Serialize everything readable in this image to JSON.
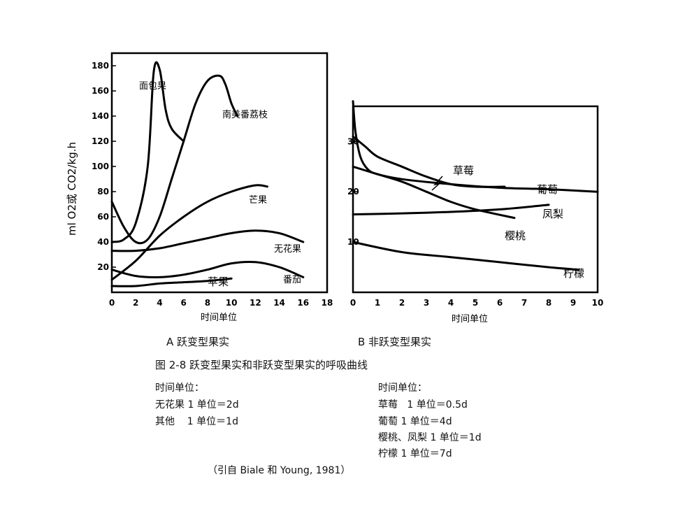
{
  "chart_data": [
    {
      "type": "line",
      "panel_label": "A 跃变型果实",
      "ylabel": "ml O2或 CO2/kg.h",
      "xlabel": "时间单位",
      "xlim": [
        0,
        18
      ],
      "ylim": [
        0,
        190
      ],
      "x_ticks": [
        "0",
        "2",
        "4",
        "6",
        "8",
        "10",
        "12",
        "14",
        "16",
        "18"
      ],
      "y_ticks": [
        "20",
        "40",
        "60",
        "80",
        "100",
        "120",
        "140",
        "160",
        "180"
      ],
      "grid": false,
      "series": [
        {
          "name": "面包果",
          "x": [
            0,
            1,
            2,
            3,
            3.5,
            4,
            4.5,
            5,
            6
          ],
          "y": [
            40,
            42,
            55,
            100,
            175,
            177,
            145,
            130,
            120
          ]
        },
        {
          "name": "南美番荔枝",
          "x": [
            0,
            1,
            2,
            3,
            4,
            5,
            6,
            7,
            8,
            9,
            9.5,
            10,
            10.5
          ],
          "y": [
            72,
            52,
            40,
            42,
            60,
            90,
            120,
            150,
            168,
            172,
            165,
            150,
            140
          ]
        },
        {
          "name": "芒果",
          "x": [
            0,
            2,
            4,
            6,
            8,
            10,
            12,
            13
          ],
          "y": [
            10,
            25,
            45,
            60,
            72,
            80,
            85,
            84
          ]
        },
        {
          "name": "无花果",
          "x": [
            0,
            2,
            4,
            6,
            8,
            10,
            12,
            14,
            16
          ],
          "y": [
            33,
            33,
            35,
            39,
            43,
            47,
            49,
            47,
            40
          ]
        },
        {
          "name": "番茄",
          "x": [
            0,
            2,
            4,
            6,
            8,
            10,
            12,
            14,
            16
          ],
          "y": [
            18,
            13,
            12,
            14,
            18,
            23,
            24,
            20,
            12
          ]
        },
        {
          "name": "苹果",
          "x": [
            0,
            2,
            4,
            6,
            8,
            10
          ],
          "y": [
            5,
            5,
            7,
            8,
            9,
            11
          ]
        }
      ]
    },
    {
      "type": "line",
      "panel_label": "B 非跃变型果实",
      "xlabel": "时间单位",
      "xlim": [
        0,
        10
      ],
      "ylim": [
        0,
        37
      ],
      "x_ticks": [
        "0",
        "1",
        "2",
        "3",
        "4",
        "5",
        "6",
        "7",
        "8",
        "9",
        "10"
      ],
      "y_ticks": [
        "10",
        "20",
        "30"
      ],
      "grid": false,
      "series": [
        {
          "name": "草莓",
          "x": [
            0,
            0.5,
            1,
            2,
            3,
            4,
            5,
            6.2
          ],
          "y": [
            31,
            29,
            27,
            25,
            23,
            21.5,
            21,
            21
          ]
        },
        {
          "name": "葡萄",
          "x": [
            0,
            0.1,
            0.3,
            0.6,
            1,
            2,
            4,
            6,
            8,
            10
          ],
          "y": [
            38,
            32,
            27,
            24.5,
            23.5,
            22.5,
            21.5,
            20.8,
            20.5,
            20
          ]
        },
        {
          "name": "凤梨",
          "x": [
            0,
            2,
            4,
            6,
            8
          ],
          "y": [
            15.5,
            15.7,
            16,
            16.5,
            17.4
          ]
        },
        {
          "name": "樱桃",
          "x": [
            0,
            1,
            2,
            3,
            4,
            5,
            6.6
          ],
          "y": [
            25,
            23.5,
            22,
            20,
            18,
            16.5,
            14.8
          ]
        },
        {
          "name": "柠檬",
          "x": [
            0,
            2,
            4,
            6,
            8,
            9.2
          ],
          "y": [
            10,
            8,
            7,
            6,
            5,
            4.5
          ]
        }
      ]
    }
  ],
  "figure_caption": "图 2-8 跃变型果实和非跃变型果实的呼吸曲线",
  "notes_left": {
    "heading": "时间单位：",
    "lines": [
      "无花果 1 单位＝2d",
      "其他    1 单位＝1d"
    ]
  },
  "notes_right": {
    "heading": "时间单位：",
    "lines": [
      "草莓   1 单位＝0.5d",
      "葡萄 1 单位＝4d",
      "樱桃、凤梨 1 单位＝1d",
      "柠檬 1 单位＝7d"
    ]
  },
  "citation": "（引自 Biale 和 Young, 1981）"
}
